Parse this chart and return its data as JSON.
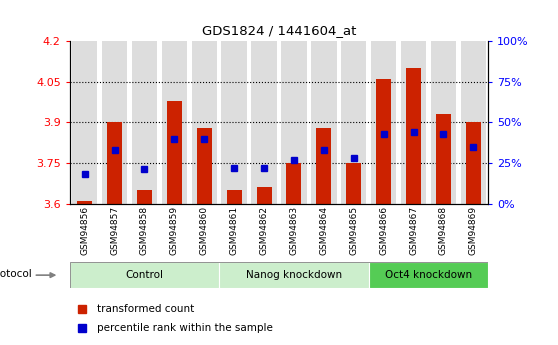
{
  "title": "GDS1824 / 1441604_at",
  "samples": [
    "GSM94856",
    "GSM94857",
    "GSM94858",
    "GSM94859",
    "GSM94860",
    "GSM94861",
    "GSM94862",
    "GSM94863",
    "GSM94864",
    "GSM94865",
    "GSM94866",
    "GSM94867",
    "GSM94868",
    "GSM94869"
  ],
  "transformed_count": [
    3.61,
    3.9,
    3.65,
    3.98,
    3.88,
    3.65,
    3.66,
    3.75,
    3.88,
    3.75,
    4.06,
    4.1,
    3.93,
    3.9
  ],
  "percentile_rank": [
    18,
    33,
    21,
    40,
    40,
    22,
    22,
    27,
    33,
    28,
    43,
    44,
    43,
    35
  ],
  "bar_color": "#cc2200",
  "dot_color": "#0000cc",
  "ylim_left": [
    3.6,
    4.2
  ],
  "yticks_left": [
    3.6,
    3.75,
    3.9,
    4.05,
    4.2
  ],
  "ytick_labels_left": [
    "3.6",
    "3.75",
    "3.9",
    "4.05",
    "4.2"
  ],
  "ytick_labels_right": [
    "0%",
    "25%",
    "50%",
    "75%",
    "100%"
  ],
  "grid_values": [
    3.75,
    3.9,
    4.05
  ],
  "group_defs": [
    {
      "label": "Control",
      "start": 0,
      "end": 4,
      "color": "#cceecc"
    },
    {
      "label": "Nanog knockdown",
      "start": 5,
      "end": 9,
      "color": "#cceecc"
    },
    {
      "label": "Oct4 knockdown",
      "start": 10,
      "end": 13,
      "color": "#55cc55"
    }
  ],
  "legend_items": [
    {
      "color": "#cc2200",
      "label": "transformed count"
    },
    {
      "color": "#0000cc",
      "label": "percentile rank within the sample"
    }
  ],
  "protocol_label": "protocol",
  "background_color": "#ffffff",
  "bar_bg_color": "#dddddd",
  "plot_bg_color": "#ffffff",
  "bar_width": 0.5
}
